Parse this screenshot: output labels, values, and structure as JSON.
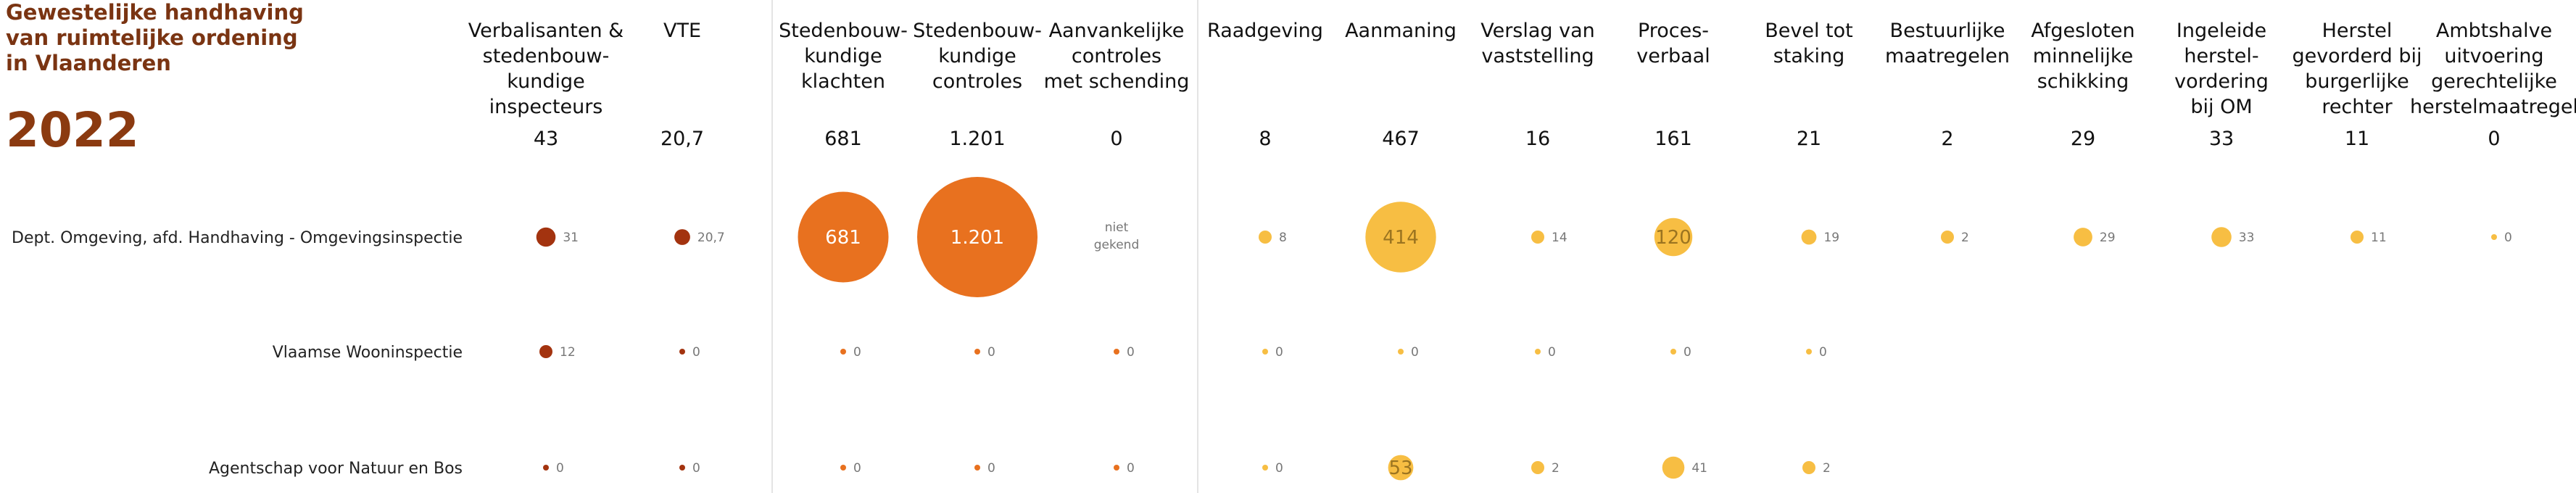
{
  "title": "Gewestelijke handhaving van ruimtelijke ordening in Vlaanderen",
  "year": "2022",
  "colors": {
    "dark": "#a3330f",
    "orange": "#e8711f",
    "yellow": "#f7be43",
    "divider": "#e4e4e4",
    "title": "#7a3412"
  },
  "chart_data": {
    "type": "bubble-matrix",
    "title": "Gewestelijke handhaving van ruimtelijke ordening in Vlaanderen",
    "subtitle": "2022",
    "rows": [
      "Dept. Omgeving, afd. Handhaving - Omgevingsinspectie",
      "Vlaamse Wooninspectie",
      "Agentschap voor Natuur en Bos"
    ],
    "columns": [
      {
        "label": [
          "Verbalisanten &",
          "stedenbouw-",
          "kundige",
          "inspecteurs"
        ],
        "total": "43",
        "group": "dark",
        "values": [
          "31",
          "12",
          "0"
        ]
      },
      {
        "label": [
          "VTE"
        ],
        "total": "20,7",
        "group": "dark",
        "values": [
          "20,7",
          "0",
          "0"
        ]
      },
      {
        "label": [
          "Stedenbouw-",
          "kundige",
          "klachten"
        ],
        "total": "681",
        "group": "orange",
        "values": [
          "681",
          "0",
          "0"
        ]
      },
      {
        "label": [
          "Stedenbouw-",
          "kundige",
          "controles"
        ],
        "total": "1.201",
        "group": "orange",
        "values": [
          "1.201",
          "0",
          "0"
        ]
      },
      {
        "label": [
          "Aanvankelijke",
          "controles",
          "met schending"
        ],
        "total": "0",
        "group": "orange",
        "values": [
          null,
          "0",
          "0"
        ]
      },
      {
        "label": [
          "Raadgeving"
        ],
        "total": "8",
        "group": "yellow",
        "values": [
          "8",
          "0",
          "0"
        ]
      },
      {
        "label": [
          "Aanmaning"
        ],
        "total": "467",
        "group": "yellow",
        "values": [
          "414",
          "0",
          "53"
        ]
      },
      {
        "label": [
          "Verslag van",
          "vaststelling"
        ],
        "total": "16",
        "group": "yellow",
        "values": [
          "14",
          "0",
          "2"
        ]
      },
      {
        "label": [
          "Proces-",
          "verbaal"
        ],
        "total": "161",
        "group": "yellow",
        "values": [
          "120",
          "0",
          "41"
        ]
      },
      {
        "label": [
          "Bevel tot",
          "staking"
        ],
        "total": "21",
        "group": "yellow",
        "values": [
          "19",
          "0",
          "2"
        ]
      },
      {
        "label": [
          "Bestuurlijke",
          "maatregelen"
        ],
        "total": "2",
        "group": "yellow",
        "values": [
          "2",
          null,
          null
        ]
      },
      {
        "label": [
          "Afgesloten",
          "minnelijke",
          "schikking"
        ],
        "total": "29",
        "group": "yellow",
        "values": [
          "29",
          null,
          null
        ]
      },
      {
        "label": [
          "Ingeleide",
          "herstel-",
          "vordering",
          "bij OM"
        ],
        "total": "33",
        "group": "yellow",
        "values": [
          "33",
          null,
          null
        ]
      },
      {
        "label": [
          "Herstel",
          "gevorderd bij",
          "burgerlijke",
          "rechter"
        ],
        "total": "11",
        "group": "yellow",
        "values": [
          "11",
          null,
          null
        ]
      },
      {
        "label": [
          "Ambtshalve",
          "uitvoering",
          "gerechtelijke",
          "herstelmaatregel"
        ],
        "total": "0",
        "group": "yellow",
        "values": [
          "0",
          null,
          null
        ]
      }
    ],
    "missing_note": [
      "niet",
      "gekend"
    ]
  }
}
